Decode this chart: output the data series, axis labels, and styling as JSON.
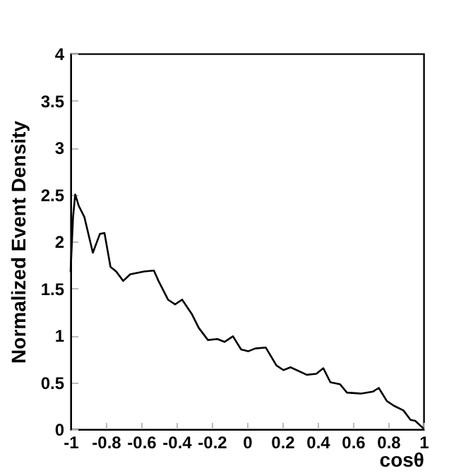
{
  "chart_data": {
    "type": "line",
    "xlabel": "cosθ",
    "ylabel": "Normalized Event Density",
    "xlim": [
      -1,
      1
    ],
    "ylim": [
      0,
      4
    ],
    "xticks": [
      -1,
      -0.8,
      -0.6,
      -0.4,
      -0.2,
      0,
      0.2,
      0.4,
      0.6,
      0.8,
      1
    ],
    "yticks": [
      0,
      0.5,
      1,
      1.5,
      2,
      2.5,
      3,
      3.5,
      4
    ],
    "grid": false,
    "legend": false,
    "marker": "none",
    "line_style": "solid",
    "series": [
      {
        "color": "#000000",
        "x": [
          -1,
          -0.986,
          -0.974,
          -0.954,
          -0.922,
          -0.874,
          -0.834,
          -0.808,
          -0.774,
          -0.742,
          -0.702,
          -0.662,
          -0.582,
          -0.528,
          -0.502,
          -0.448,
          -0.408,
          -0.368,
          -0.314,
          -0.274,
          -0.222,
          -0.168,
          -0.128,
          -0.08,
          -0.034,
          0.006,
          0.046,
          0.106,
          0.166,
          0.206,
          0.246,
          0.338,
          0.392,
          0.432,
          0.472,
          0.526,
          0.566,
          0.646,
          0.712,
          0.746,
          0.792,
          0.832,
          0.886,
          0.926,
          0.952,
          0.998
        ],
        "values": [
          1.68,
          2.26,
          2.5,
          2.38,
          2.26,
          1.88,
          2.08,
          2.09,
          1.73,
          1.68,
          1.58,
          1.65,
          1.68,
          1.69,
          1.58,
          1.38,
          1.33,
          1.38,
          1.23,
          1.08,
          0.95,
          0.96,
          0.93,
          0.99,
          0.85,
          0.83,
          0.86,
          0.87,
          0.68,
          0.63,
          0.66,
          0.58,
          0.59,
          0.65,
          0.5,
          0.48,
          0.39,
          0.38,
          0.4,
          0.44,
          0.3,
          0.25,
          0.2,
          0.1,
          0.09,
          0.01
        ]
      }
    ]
  }
}
